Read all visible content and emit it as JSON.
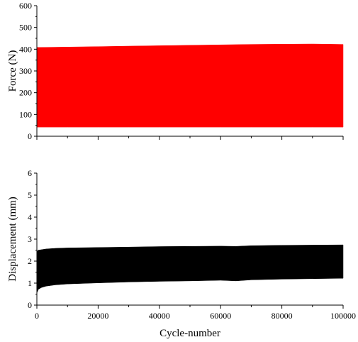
{
  "chart_data": [
    {
      "type": "area",
      "ylabel": "Force (N)",
      "xlabel": "",
      "xlim": [
        0,
        100000
      ],
      "ylim": [
        0,
        600
      ],
      "xticks": [
        0,
        20000,
        40000,
        60000,
        80000,
        100000
      ],
      "yticks": [
        0,
        100,
        200,
        300,
        400,
        500,
        600
      ],
      "x_tick_labels_shown": false,
      "grid": false,
      "series": [
        {
          "color": "#ff0000",
          "x": [
            0,
            10000,
            20000,
            30000,
            40000,
            50000,
            60000,
            70000,
            80000,
            90000,
            100000
          ],
          "upper": [
            408,
            410,
            412,
            414,
            416,
            418,
            420,
            422,
            423,
            424,
            422
          ],
          "lower": [
            42,
            42,
            42,
            42,
            42,
            42,
            42,
            42,
            42,
            42,
            42
          ]
        }
      ]
    },
    {
      "type": "area",
      "ylabel": "Displacement (mm)",
      "xlabel": "Cycle-number",
      "xlim": [
        0,
        100000
      ],
      "ylim": [
        0,
        6
      ],
      "xticks": [
        0,
        20000,
        40000,
        60000,
        80000,
        100000
      ],
      "yticks": [
        0,
        1,
        2,
        3,
        4,
        5,
        6
      ],
      "x_tick_labels_shown": true,
      "grid": false,
      "series": [
        {
          "color": "#000000",
          "x": [
            0,
            500,
            1500,
            3000,
            6000,
            10000,
            20000,
            30000,
            40000,
            50000,
            60000,
            65000,
            70000,
            80000,
            90000,
            100000
          ],
          "upper": [
            2.45,
            2.5,
            2.52,
            2.55,
            2.58,
            2.6,
            2.62,
            2.64,
            2.66,
            2.67,
            2.68,
            2.67,
            2.7,
            2.72,
            2.73,
            2.74
          ],
          "lower": [
            0.55,
            0.72,
            0.8,
            0.86,
            0.92,
            0.96,
            1.01,
            1.05,
            1.08,
            1.1,
            1.13,
            1.1,
            1.15,
            1.18,
            1.2,
            1.22
          ]
        }
      ]
    }
  ]
}
